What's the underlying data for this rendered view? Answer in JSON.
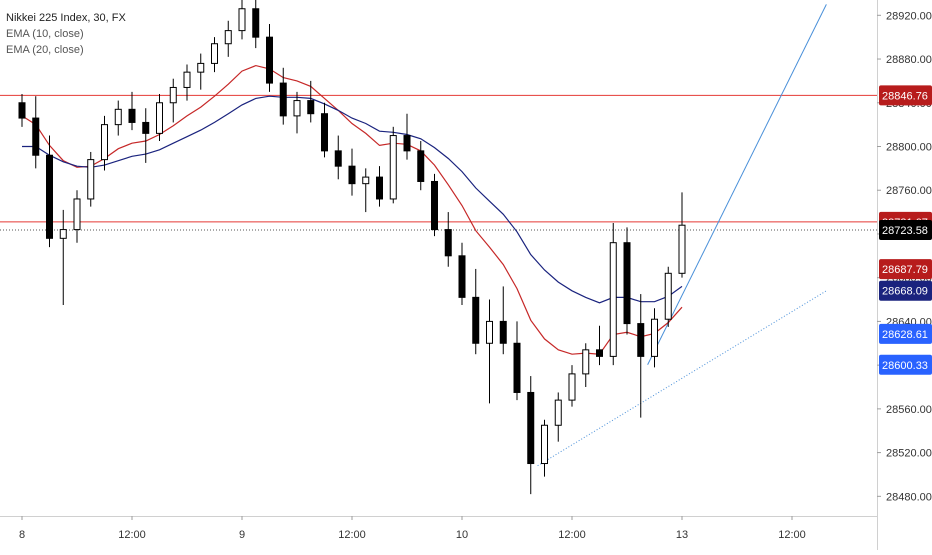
{
  "legend": {
    "title": "Nikkei 225 Index, 30, FX",
    "ema1": "EMA (10, close)",
    "ema2": "EMA (20, close)"
  },
  "colors": {
    "up_fill": "#ffffff",
    "up_border": "#000000",
    "down_fill": "#000000",
    "ema10": "#c62828",
    "ema20": "#1a237e",
    "hline": "#e53935",
    "trend": "#4a90d9",
    "label_blue": "#2962ff",
    "label_red": "#b71c1c",
    "label_navy": "#1a237e",
    "label_black": "#000000"
  },
  "chart_data": {
    "type": "candlestick",
    "symbol": "Nikkei 225 Index, 30, FX",
    "ylim": [
      28462,
      28934
    ],
    "y_ticks": [
      28480.0,
      28520.0,
      28560.0,
      28600.0,
      28640.0,
      28680.0,
      28720.0,
      28760.0,
      28800.0,
      28840.0,
      28880.0,
      28920.0
    ],
    "x_ticks": [
      {
        "label": "8",
        "index": 0
      },
      {
        "label": "12:00",
        "index": 8
      },
      {
        "label": "9",
        "index": 16
      },
      {
        "label": "12:00",
        "index": 24
      },
      {
        "label": "10",
        "index": 32
      },
      {
        "label": "12:00",
        "index": 40
      },
      {
        "label": "13",
        "index": 48
      },
      {
        "label": "12:00",
        "index": 56
      }
    ],
    "candles_ohlc": [
      [
        28840,
        28848,
        28818,
        28826
      ],
      [
        28826,
        28846,
        28780,
        28792
      ],
      [
        28792,
        28810,
        28708,
        28716
      ],
      [
        28716,
        28742,
        28655,
        28724
      ],
      [
        28724,
        28760,
        28712,
        28752
      ],
      [
        28752,
        28795,
        28745,
        28788
      ],
      [
        28788,
        28828,
        28778,
        28820
      ],
      [
        28820,
        28842,
        28810,
        28834
      ],
      [
        28834,
        28850,
        28815,
        28822
      ],
      [
        28822,
        28835,
        28785,
        28812
      ],
      [
        28812,
        28848,
        28805,
        28840
      ],
      [
        28840,
        28862,
        28822,
        28854
      ],
      [
        28854,
        28875,
        28842,
        28868
      ],
      [
        28868,
        28885,
        28852,
        28876
      ],
      [
        28876,
        28900,
        28868,
        28894
      ],
      [
        28894,
        28915,
        28882,
        28906
      ],
      [
        28906,
        28934,
        28898,
        28926
      ],
      [
        28926,
        28934,
        28890,
        28900
      ],
      [
        28900,
        28912,
        28850,
        28858
      ],
      [
        28858,
        28872,
        28820,
        28828
      ],
      [
        28828,
        28850,
        28812,
        28842
      ],
      [
        28842,
        28860,
        28822,
        28830
      ],
      [
        28830,
        28840,
        28790,
        28796
      ],
      [
        28796,
        28810,
        28770,
        28782
      ],
      [
        28782,
        28798,
        28755,
        28766
      ],
      [
        28766,
        28780,
        28740,
        28772
      ],
      [
        28772,
        28782,
        28745,
        28752
      ],
      [
        28752,
        28818,
        28748,
        28810
      ],
      [
        28810,
        28830,
        28788,
        28796
      ],
      [
        28796,
        28805,
        28760,
        28768
      ],
      [
        28768,
        28775,
        28718,
        28724
      ],
      [
        28724,
        28740,
        28690,
        28700
      ],
      [
        28700,
        28712,
        28655,
        28662
      ],
      [
        28662,
        28688,
        28610,
        28620
      ],
      [
        28620,
        28660,
        28565,
        28640
      ],
      [
        28640,
        28672,
        28610,
        28620
      ],
      [
        28620,
        28640,
        28568,
        28575
      ],
      [
        28575,
        28590,
        28482,
        28510
      ],
      [
        28510,
        28550,
        28498,
        28545
      ],
      [
        28545,
        28575,
        28530,
        28568
      ],
      [
        28568,
        28600,
        28562,
        28592
      ],
      [
        28592,
        28620,
        28580,
        28614
      ],
      [
        28614,
        28636,
        28600,
        28608
      ],
      [
        28608,
        28730,
        28600,
        28712
      ],
      [
        28712,
        28726,
        28628,
        28638
      ],
      [
        28638,
        28665,
        28552,
        28608
      ],
      [
        28608,
        28652,
        28598,
        28642
      ],
      [
        28642,
        28690,
        28635,
        28684
      ],
      [
        28684,
        28758,
        28680,
        28728
      ]
    ],
    "series": [
      {
        "name": "EMA (10, close)",
        "values": [
          28828,
          28820,
          28801,
          28787,
          28781,
          28782,
          28789,
          28798,
          28803,
          28805,
          28811,
          28819,
          28828,
          28836,
          28846,
          28857,
          28869,
          28874,
          28871,
          28863,
          28860,
          28855,
          28844,
          28833,
          28821,
          28812,
          28801,
          28803,
          28802,
          28796,
          28783,
          28765,
          28746,
          28723,
          28708,
          28692,
          28670,
          28641,
          28624,
          28614,
          28610,
          28611,
          28610,
          28628,
          28630,
          28626,
          28629,
          28639,
          28653
        ]
      },
      {
        "name": "EMA (20, close)",
        "values": [
          28800,
          28800,
          28792,
          28786,
          28782,
          28781,
          28783,
          28787,
          28791,
          28793,
          28797,
          28803,
          28809,
          28815,
          28822,
          28830,
          28838,
          28844,
          28846,
          28845,
          28845,
          28844,
          28839,
          28833,
          28826,
          28821,
          28814,
          28813,
          28811,
          28807,
          28799,
          28789,
          28777,
          28762,
          28750,
          28738,
          28722,
          28701,
          28687,
          28676,
          28668,
          28662,
          28657,
          28662,
          28662,
          28658,
          28658,
          28663,
          28672
        ]
      }
    ],
    "price_lines": [
      {
        "label": "28846.76",
        "value": 28846.76,
        "style": "solid"
      },
      {
        "label": "28731.07",
        "value": 28731.07,
        "style": "solid"
      },
      {
        "label": "28723.58",
        "value": 28723.58,
        "style": "dotted"
      }
    ],
    "price_labels": [
      {
        "label": "28846.76",
        "value": 28846.76,
        "color": "label_red"
      },
      {
        "label": "28731.07",
        "value": 28731.07,
        "color": "label_red"
      },
      {
        "label": "28723.58",
        "value": 28723.58,
        "color": "label_black"
      },
      {
        "label": "28687.79",
        "value": 28687.79,
        "color": "label_red"
      },
      {
        "label": "28668.09",
        "value": 28668.09,
        "color": "label_navy"
      },
      {
        "label": "28628.61",
        "value": 28628.61,
        "color": "label_blue"
      },
      {
        "label": "28600.33",
        "value": 28600.33,
        "color": "label_blue"
      }
    ],
    "trend_lines": [
      {
        "from": [
          45.5,
          28600.33
        ],
        "to": [
          58.5,
          28930
        ]
      },
      {
        "from": [
          37.5,
          28508
        ],
        "to": [
          58.5,
          28668
        ]
      }
    ]
  }
}
